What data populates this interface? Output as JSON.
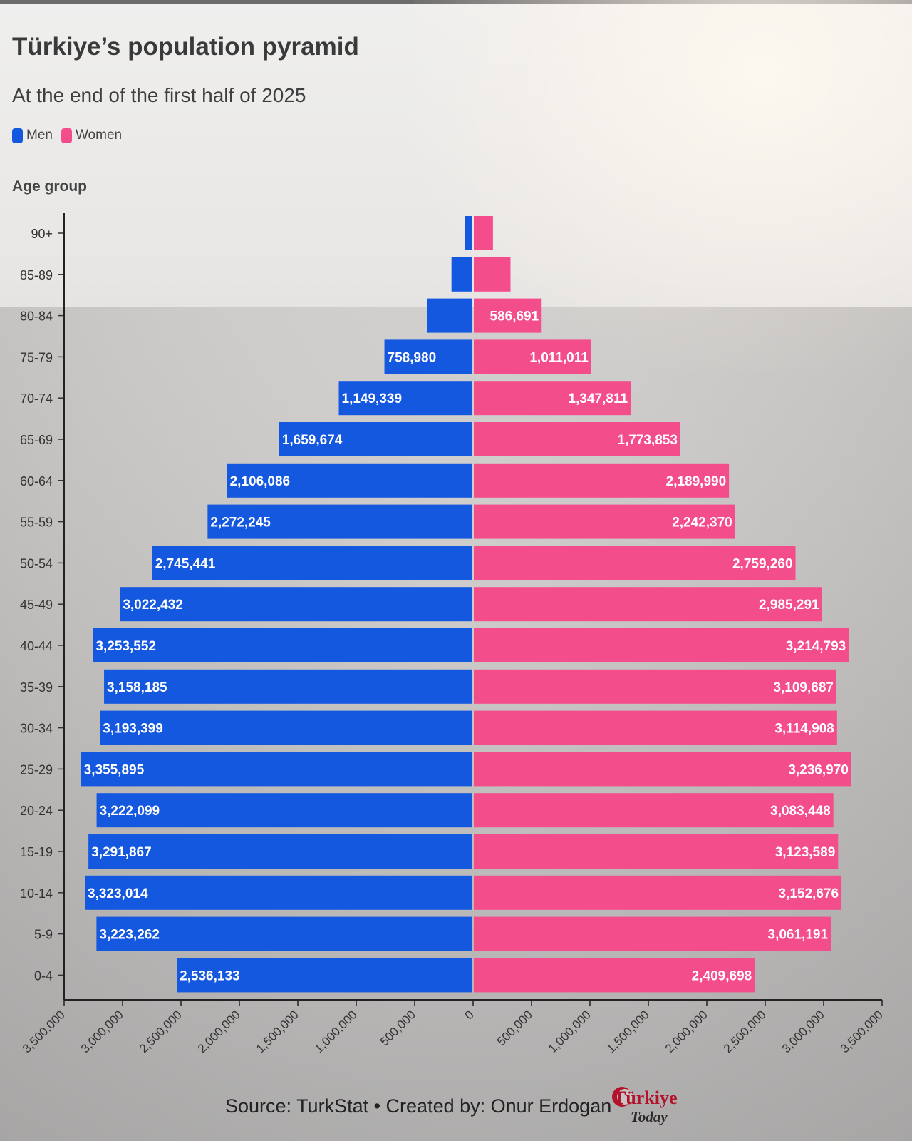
{
  "header": {
    "title": "Türkiye’s population pyramid",
    "subtitle": "At the end of the first half of 2025"
  },
  "footer": {
    "source": "Source: TurkStat • Created by: Onur Erdogan",
    "logo_top": "Türkiye",
    "logo_bottom": "Today"
  },
  "colors": {
    "men": "#1558e0",
    "women": "#f44d8c"
  },
  "chart_data": {
    "type": "bar",
    "orientation": "horizontal",
    "subtype": "population-pyramid",
    "title": "Türkiye’s population pyramid",
    "subtitle": "At the end of the first half of 2025",
    "ylabel": "Age group",
    "xlabel": "",
    "categories": [
      "90+",
      "85-89",
      "80-84",
      "75-79",
      "70-74",
      "65-69",
      "60-64",
      "55-59",
      "50-54",
      "45-49",
      "40-44",
      "35-39",
      "30-34",
      "25-29",
      "20-24",
      "15-19",
      "10-14",
      "5-9",
      "0-4"
    ],
    "series": [
      {
        "name": "Men",
        "color": "#1558e0",
        "values": [
          70000,
          185000,
          395000,
          758980,
          1149339,
          1659674,
          2106086,
          2272245,
          2745441,
          3022432,
          3253552,
          3158185,
          3193399,
          3355895,
          3222099,
          3291867,
          3323014,
          3223262,
          2536133
        ],
        "labels": [
          "",
          "",
          "",
          "758,980",
          "1,149,339",
          "1,659,674",
          "2,106,086",
          "2,272,245",
          "2,745,441",
          "3,022,432",
          "3,253,552",
          "3,158,185",
          "3,193,399",
          "3,355,895",
          "3,222,099",
          "3,291,867",
          "3,323,014",
          "3,223,262",
          "2,536,133"
        ]
      },
      {
        "name": "Women",
        "color": "#f44d8c",
        "values": [
          170000,
          320000,
          586691,
          1011011,
          1347811,
          1773853,
          2189990,
          2242370,
          2759260,
          2985291,
          3214793,
          3109687,
          3114908,
          3236970,
          3083448,
          3123589,
          3152676,
          3061191,
          2409698
        ],
        "labels": [
          "",
          "",
          "586,691",
          "1,011,011",
          "1,347,811",
          "1,773,853",
          "2,189,990",
          "2,242,370",
          "2,759,260",
          "2,985,291",
          "3,214,793",
          "3,109,687",
          "3,114,908",
          "3,236,970",
          "3,083,448",
          "3,123,589",
          "3,152,676",
          "3,061,191",
          "2,409,698"
        ]
      }
    ],
    "xlim": [
      -3500000,
      3500000
    ],
    "xticks": [
      -3500000,
      -3000000,
      -2500000,
      -2000000,
      -1500000,
      -1000000,
      -500000,
      0,
      500000,
      1000000,
      1500000,
      2000000,
      2500000,
      3000000,
      3500000
    ],
    "xtick_labels": [
      "3,500,000",
      "3,000,000",
      "2,500,000",
      "2,000,000",
      "1,500,000",
      "1,000,000",
      "500,000",
      "0",
      "500,000",
      "1,000,000",
      "1,500,000",
      "2,000,000",
      "2,500,000",
      "3,000,000",
      "3,500,000"
    ],
    "legend": "top-left",
    "grid": false
  }
}
